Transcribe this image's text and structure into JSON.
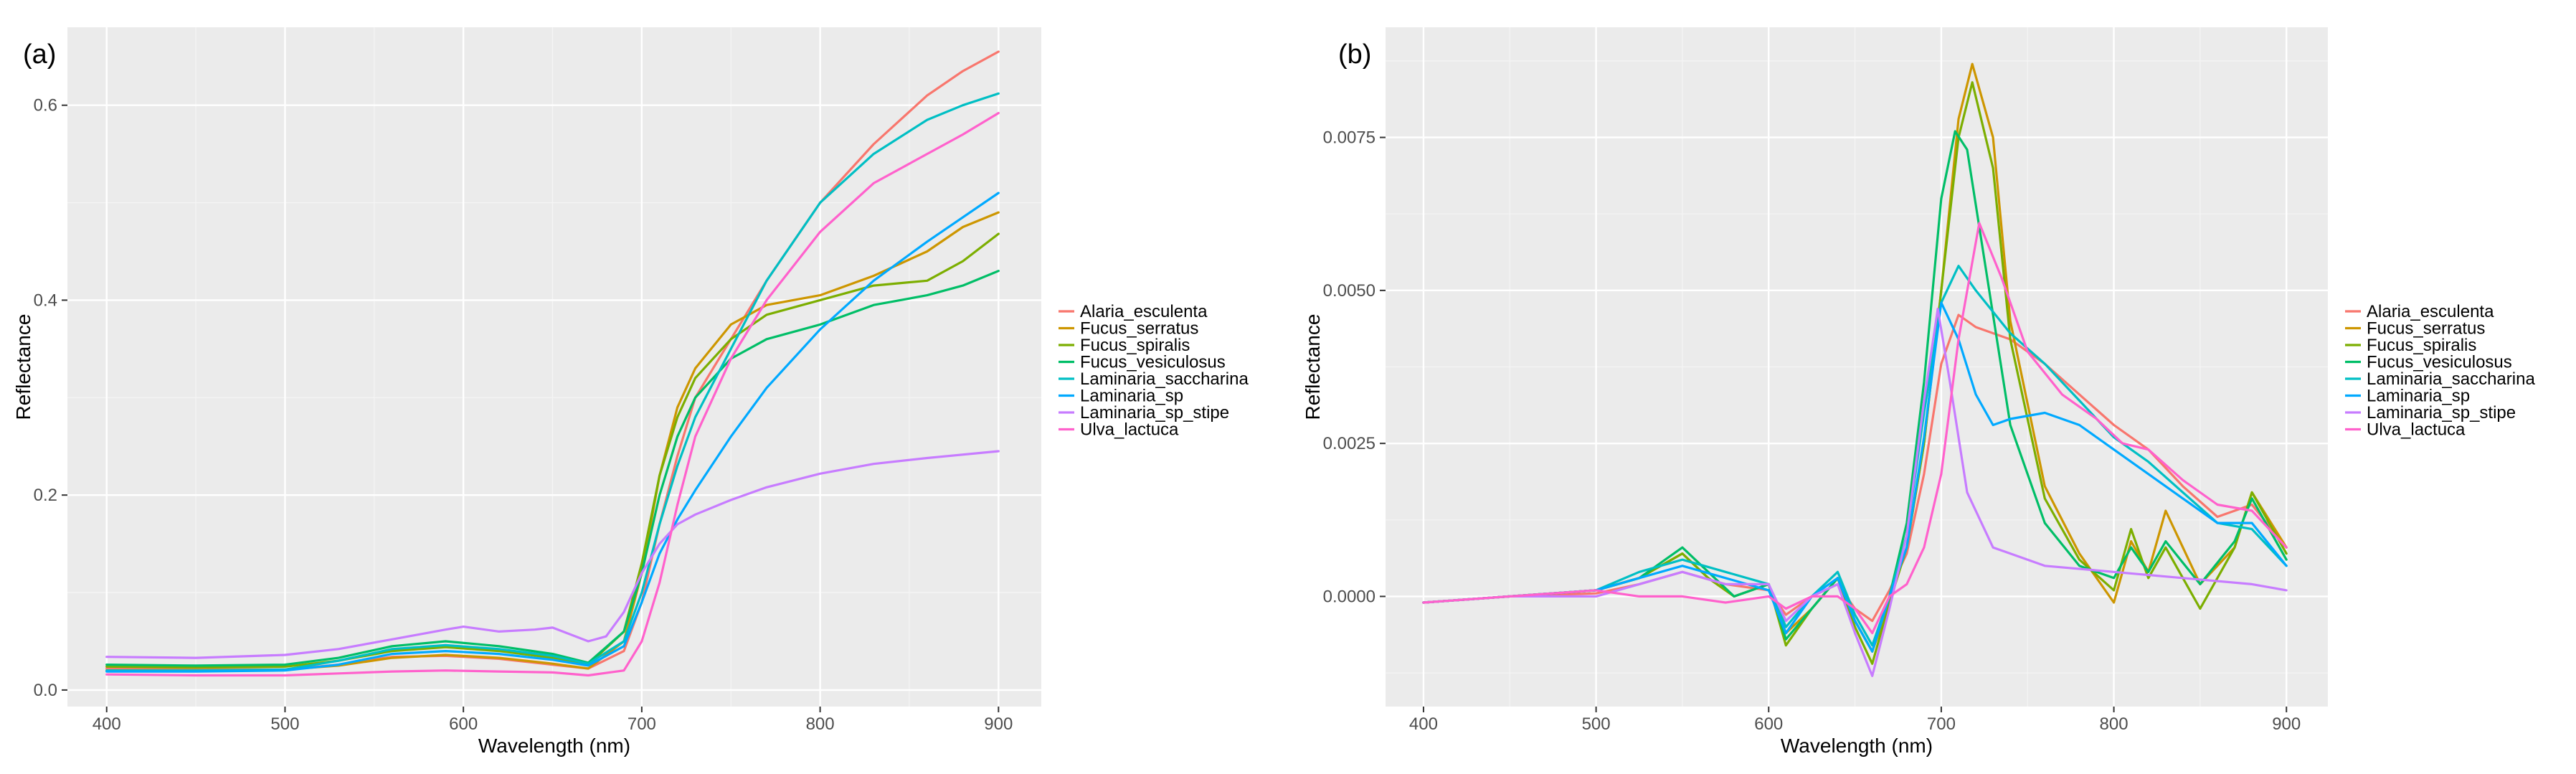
{
  "chart_data": [
    {
      "type": "line",
      "panel_label": "(a)",
      "title": "",
      "xlabel": "Wavelength (nm)",
      "ylabel": "Reflectance",
      "xlim": [
        378,
        924
      ],
      "ylim": [
        -0.017,
        0.68
      ],
      "xticks": [
        400,
        500,
        600,
        700,
        800,
        900
      ],
      "xtick_labels": [
        "400",
        "500",
        "600",
        "700",
        "800",
        "900"
      ],
      "yticks": [
        0.0,
        0.2,
        0.4,
        0.6
      ],
      "ytick_labels": [
        "0.0",
        "0.2",
        "0.4",
        "0.6"
      ],
      "legend_position": "right",
      "grid": true,
      "series": [
        {
          "name": "Alaria_esculenta",
          "color": "#F8766D",
          "x": [
            400,
            450,
            500,
            530,
            560,
            590,
            620,
            650,
            670,
            690,
            700,
            710,
            720,
            730,
            750,
            770,
            800,
            830,
            860,
            880,
            900
          ],
          "y": [
            0.022,
            0.021,
            0.021,
            0.026,
            0.034,
            0.035,
            0.032,
            0.026,
            0.022,
            0.04,
            0.09,
            0.17,
            0.24,
            0.3,
            0.36,
            0.42,
            0.5,
            0.56,
            0.61,
            0.635,
            0.655
          ]
        },
        {
          "name": "Fucus_serratus",
          "color": "#CD9600",
          "x": [
            400,
            450,
            500,
            530,
            560,
            590,
            620,
            650,
            670,
            690,
            700,
            710,
            720,
            730,
            750,
            770,
            800,
            830,
            860,
            880,
            900
          ],
          "y": [
            0.02,
            0.02,
            0.021,
            0.025,
            0.033,
            0.036,
            0.033,
            0.027,
            0.022,
            0.05,
            0.12,
            0.22,
            0.29,
            0.33,
            0.375,
            0.395,
            0.405,
            0.425,
            0.45,
            0.475,
            0.49
          ]
        },
        {
          "name": "Fucus_spiralis",
          "color": "#7CAE00",
          "x": [
            400,
            450,
            500,
            530,
            560,
            590,
            620,
            650,
            670,
            690,
            700,
            710,
            720,
            730,
            750,
            770,
            800,
            830,
            860,
            880,
            900
          ],
          "y": [
            0.024,
            0.023,
            0.024,
            0.03,
            0.04,
            0.044,
            0.04,
            0.033,
            0.026,
            0.06,
            0.13,
            0.22,
            0.28,
            0.32,
            0.36,
            0.385,
            0.4,
            0.415,
            0.42,
            0.44,
            0.468
          ]
        },
        {
          "name": "Fucus_vesiculosus",
          "color": "#00BE67",
          "x": [
            400,
            450,
            500,
            530,
            560,
            590,
            620,
            650,
            670,
            690,
            700,
            710,
            720,
            730,
            750,
            770,
            800,
            830,
            860,
            880,
            900
          ],
          "y": [
            0.026,
            0.025,
            0.026,
            0.033,
            0.045,
            0.05,
            0.045,
            0.037,
            0.028,
            0.06,
            0.12,
            0.2,
            0.26,
            0.3,
            0.34,
            0.36,
            0.375,
            0.395,
            0.405,
            0.415,
            0.43
          ]
        },
        {
          "name": "Laminaria_saccharina",
          "color": "#00BFC4",
          "x": [
            400,
            450,
            500,
            530,
            560,
            590,
            620,
            650,
            670,
            690,
            700,
            710,
            720,
            730,
            750,
            770,
            800,
            830,
            860,
            880,
            900
          ],
          "y": [
            0.02,
            0.02,
            0.021,
            0.03,
            0.042,
            0.046,
            0.042,
            0.035,
            0.027,
            0.05,
            0.1,
            0.17,
            0.23,
            0.28,
            0.35,
            0.42,
            0.5,
            0.55,
            0.585,
            0.6,
            0.612
          ]
        },
        {
          "name": "Laminaria_sp",
          "color": "#00A9FF",
          "x": [
            400,
            450,
            500,
            530,
            560,
            590,
            620,
            650,
            670,
            690,
            700,
            710,
            720,
            730,
            750,
            770,
            800,
            830,
            860,
            880,
            900
          ],
          "y": [
            0.019,
            0.019,
            0.02,
            0.026,
            0.037,
            0.04,
            0.037,
            0.031,
            0.025,
            0.045,
            0.09,
            0.14,
            0.175,
            0.205,
            0.26,
            0.31,
            0.37,
            0.42,
            0.46,
            0.485,
            0.51
          ]
        },
        {
          "name": "Laminaria_sp_stipe",
          "color": "#C77CFF",
          "x": [
            400,
            450,
            500,
            530,
            560,
            590,
            600,
            620,
            640,
            650,
            670,
            680,
            690,
            700,
            710,
            720,
            730,
            750,
            770,
            800,
            830,
            860,
            900
          ],
          "y": [
            0.034,
            0.033,
            0.036,
            0.042,
            0.052,
            0.062,
            0.065,
            0.06,
            0.062,
            0.064,
            0.05,
            0.055,
            0.08,
            0.12,
            0.15,
            0.17,
            0.18,
            0.195,
            0.208,
            0.222,
            0.232,
            0.238,
            0.245
          ]
        },
        {
          "name": "Ulva_lactuca",
          "color": "#FF61CC",
          "x": [
            400,
            450,
            500,
            530,
            560,
            590,
            620,
            650,
            670,
            690,
            700,
            710,
            720,
            730,
            750,
            770,
            800,
            830,
            860,
            880,
            900
          ],
          "y": [
            0.016,
            0.015,
            0.015,
            0.017,
            0.019,
            0.02,
            0.019,
            0.018,
            0.015,
            0.02,
            0.05,
            0.11,
            0.19,
            0.26,
            0.34,
            0.4,
            0.47,
            0.52,
            0.55,
            0.57,
            0.592
          ]
        }
      ]
    },
    {
      "type": "line",
      "panel_label": "(b)",
      "title": "",
      "xlabel": "Wavelength (nm)",
      "ylabel": "Reflectance",
      "xlim": [
        378,
        924
      ],
      "ylim": [
        -0.0018,
        0.0093
      ],
      "xticks": [
        400,
        500,
        600,
        700,
        800,
        900
      ],
      "xtick_labels": [
        "400",
        "500",
        "600",
        "700",
        "800",
        "900"
      ],
      "yticks": [
        0.0,
        0.0025,
        0.005,
        0.0075
      ],
      "ytick_labels": [
        "0.0000",
        "0.0025",
        "0.0050",
        "0.0075"
      ],
      "legend_position": "right",
      "grid": true,
      "series": [
        {
          "name": "Alaria_esculenta",
          "color": "#F8766D",
          "x": [
            400,
            450,
            500,
            525,
            550,
            575,
            600,
            610,
            625,
            640,
            650,
            660,
            670,
            680,
            690,
            700,
            710,
            720,
            740,
            760,
            780,
            800,
            820,
            840,
            860,
            880,
            900
          ],
          "y": [
            -0.0001,
            0.0,
            5e-05,
            0.0002,
            0.0004,
            0.0002,
            0.0001,
            -0.0003,
            0.0,
            0.0002,
            -0.0002,
            -0.0004,
            0.0001,
            0.0007,
            0.002,
            0.0038,
            0.0046,
            0.0044,
            0.0042,
            0.0038,
            0.0033,
            0.0028,
            0.0024,
            0.0018,
            0.0013,
            0.0015,
            0.0008
          ]
        },
        {
          "name": "Fucus_serratus",
          "color": "#CD9600",
          "x": [
            400,
            450,
            500,
            525,
            550,
            565,
            580,
            600,
            610,
            625,
            640,
            650,
            660,
            670,
            680,
            690,
            700,
            710,
            718,
            730,
            740,
            760,
            780,
            800,
            810,
            820,
            830,
            850,
            870,
            880,
            900
          ],
          "y": [
            -0.0001,
            0.0,
            0.0001,
            0.0003,
            0.0007,
            0.0003,
            0.0,
            0.0002,
            -0.0006,
            -0.0002,
            0.0003,
            -0.0004,
            -0.0009,
            -0.0001,
            0.0008,
            0.0025,
            0.005,
            0.0078,
            0.0087,
            0.0075,
            0.0045,
            0.0018,
            0.0007,
            -0.0001,
            0.0009,
            0.0004,
            0.0014,
            0.0002,
            0.0008,
            0.0017,
            0.0008
          ]
        },
        {
          "name": "Fucus_spiralis",
          "color": "#7CAE00",
          "x": [
            400,
            450,
            500,
            525,
            550,
            565,
            580,
            600,
            610,
            625,
            640,
            650,
            660,
            670,
            680,
            690,
            700,
            710,
            718,
            730,
            740,
            760,
            780,
            800,
            810,
            820,
            830,
            850,
            870,
            880,
            900
          ],
          "y": [
            -0.0001,
            0.0,
            0.0001,
            0.0003,
            0.0007,
            0.0003,
            0.0,
            0.0002,
            -0.0008,
            -0.0002,
            0.0003,
            -0.0005,
            -0.0011,
            -0.0001,
            0.0008,
            0.0025,
            0.005,
            0.0075,
            0.0084,
            0.007,
            0.0042,
            0.0016,
            0.0006,
            0.0001,
            0.0011,
            0.0003,
            0.0008,
            -0.0002,
            0.0008,
            0.0017,
            0.0007
          ]
        },
        {
          "name": "Fucus_vesiculosus",
          "color": "#00BE67",
          "x": [
            400,
            450,
            500,
            525,
            550,
            565,
            580,
            600,
            610,
            625,
            640,
            650,
            660,
            670,
            680,
            690,
            700,
            708,
            715,
            725,
            740,
            760,
            780,
            800,
            810,
            820,
            830,
            850,
            870,
            880,
            900
          ],
          "y": [
            -0.0001,
            0.0,
            0.0001,
            0.0003,
            0.0008,
            0.0004,
            0.0,
            0.0002,
            -0.0007,
            -0.0002,
            0.0003,
            -0.0004,
            -0.0009,
            0.0,
            0.0012,
            0.0035,
            0.0065,
            0.0076,
            0.0073,
            0.0055,
            0.0028,
            0.0012,
            0.0005,
            0.0003,
            0.0008,
            0.0004,
            0.0009,
            0.0002,
            0.0009,
            0.0016,
            0.0006
          ]
        },
        {
          "name": "Laminaria_saccharina",
          "color": "#00BFC4",
          "x": [
            400,
            450,
            500,
            525,
            550,
            575,
            600,
            610,
            625,
            640,
            650,
            660,
            670,
            680,
            690,
            700,
            710,
            720,
            740,
            760,
            780,
            800,
            820,
            840,
            860,
            880,
            900
          ],
          "y": [
            -0.0001,
            0.0,
            0.0001,
            0.0004,
            0.0006,
            0.0004,
            0.0002,
            -0.0005,
            0.0,
            0.0004,
            -0.0003,
            -0.0008,
            0.0,
            0.001,
            0.003,
            0.0048,
            0.0054,
            0.005,
            0.0043,
            0.0038,
            0.0032,
            0.0026,
            0.0022,
            0.0017,
            0.0012,
            0.0011,
            0.0005
          ]
        },
        {
          "name": "Laminaria_sp",
          "color": "#00A9FF",
          "x": [
            400,
            450,
            500,
            525,
            550,
            575,
            600,
            610,
            625,
            640,
            650,
            660,
            670,
            680,
            690,
            700,
            710,
            720,
            730,
            740,
            760,
            780,
            800,
            820,
            840,
            860,
            880,
            900
          ],
          "y": [
            -0.0001,
            0.0,
            0.0001,
            0.0003,
            0.0005,
            0.0003,
            0.0001,
            -0.0006,
            0.0,
            0.0003,
            -0.0004,
            -0.0009,
            0.0,
            0.0008,
            0.0026,
            0.0048,
            0.0042,
            0.0033,
            0.0028,
            0.0029,
            0.003,
            0.0028,
            0.0024,
            0.002,
            0.0016,
            0.0012,
            0.0012,
            0.0005
          ]
        },
        {
          "name": "Laminaria_sp_stipe",
          "color": "#C77CFF",
          "x": [
            400,
            450,
            500,
            525,
            550,
            575,
            600,
            610,
            625,
            640,
            650,
            660,
            670,
            680,
            690,
            698,
            705,
            715,
            730,
            760,
            800,
            840,
            880,
            900
          ],
          "y": [
            -0.0001,
            0.0,
            0.0,
            0.0002,
            0.0004,
            0.0002,
            0.0002,
            -0.0004,
            0.0,
            0.0002,
            -0.0006,
            -0.0013,
            -0.0002,
            0.001,
            0.0032,
            0.0047,
            0.0035,
            0.0017,
            0.0008,
            0.0005,
            0.0004,
            0.0003,
            0.0002,
            0.0001
          ]
        },
        {
          "name": "Ulva_lactuca",
          "color": "#FF61CC",
          "x": [
            400,
            450,
            500,
            525,
            550,
            575,
            600,
            610,
            625,
            640,
            650,
            660,
            670,
            680,
            690,
            700,
            710,
            722,
            735,
            750,
            770,
            790,
            805,
            820,
            840,
            860,
            880,
            900
          ],
          "y": [
            -0.0001,
            0.0,
            0.0001,
            0.0,
            0.0,
            -0.0001,
            0.0,
            -0.0002,
            0.0,
            0.0,
            -0.0002,
            -0.0006,
            0.0,
            0.0002,
            0.0008,
            0.002,
            0.0042,
            0.0061,
            0.0052,
            0.004,
            0.0033,
            0.0029,
            0.0025,
            0.0024,
            0.0019,
            0.0015,
            0.0014,
            0.0008
          ]
        }
      ]
    }
  ]
}
